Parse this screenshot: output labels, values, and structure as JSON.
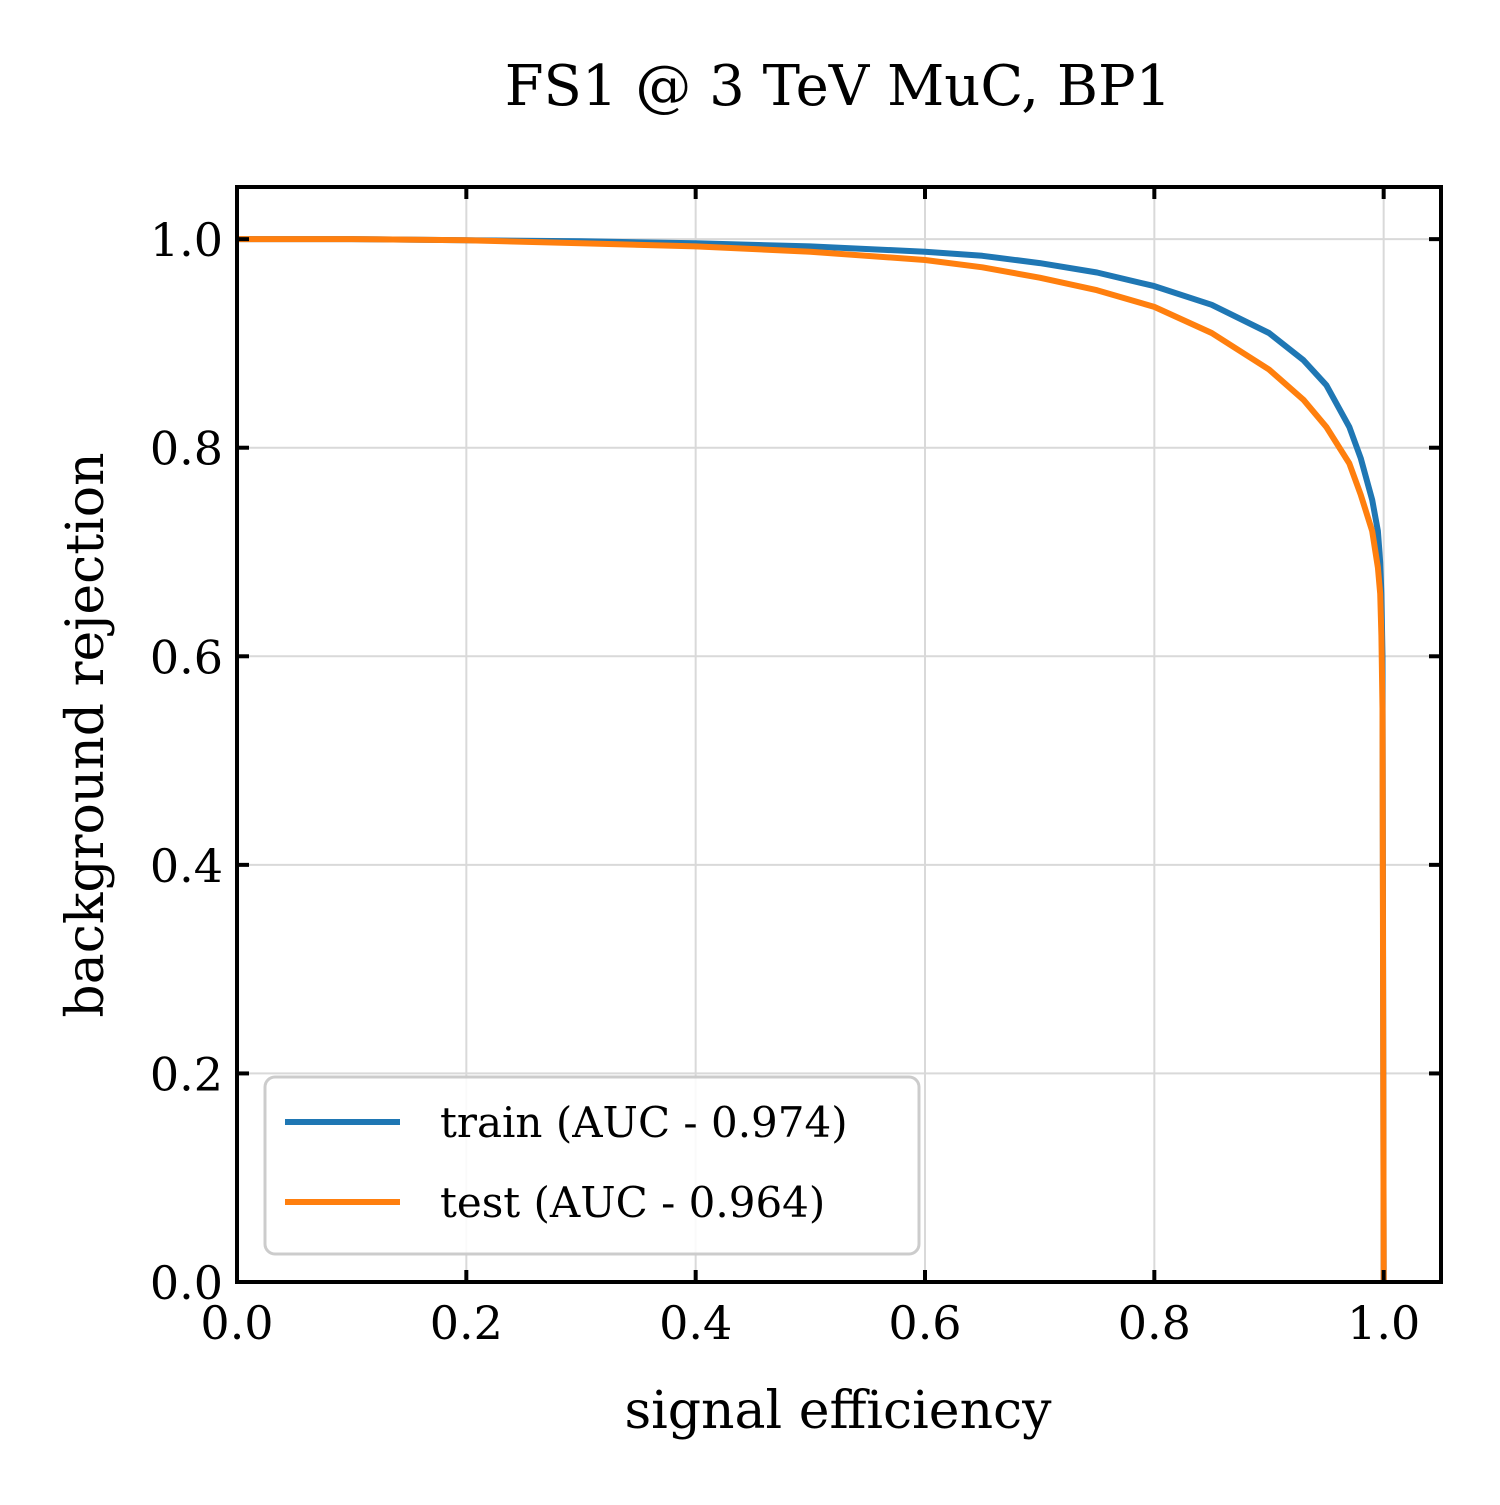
{
  "chart_data": {
    "type": "line",
    "title": "FS1 @ 3 TeV MuC, BP1",
    "xlabel": "signal efficiency",
    "ylabel": "background rejection",
    "xlim": [
      0.0,
      1.05
    ],
    "ylim": [
      0.0,
      1.05
    ],
    "xticks": [
      0.0,
      0.2,
      0.4,
      0.6,
      0.8,
      1.0
    ],
    "xtick_labels": [
      "0.0",
      "0.2",
      "0.4",
      "0.6",
      "0.8",
      "1.0"
    ],
    "yticks": [
      0.0,
      0.2,
      0.4,
      0.6,
      0.8,
      1.0
    ],
    "ytick_labels": [
      "0.0",
      "0.2",
      "0.4",
      "0.6",
      "0.8",
      "1.0"
    ],
    "grid": true,
    "legend_position": "lower-left",
    "series": [
      {
        "name": "train (AUC - 0.974)",
        "color": "#1f77b4",
        "x": [
          0.0,
          0.1,
          0.2,
          0.3,
          0.4,
          0.5,
          0.6,
          0.65,
          0.7,
          0.75,
          0.8,
          0.85,
          0.9,
          0.93,
          0.95,
          0.97,
          0.98,
          0.99,
          0.995,
          0.997,
          0.998,
          0.999,
          1.0
        ],
        "y": [
          1.0,
          1.0,
          0.999,
          0.998,
          0.996,
          0.993,
          0.988,
          0.984,
          0.977,
          0.968,
          0.955,
          0.937,
          0.91,
          0.884,
          0.86,
          0.82,
          0.79,
          0.75,
          0.72,
          0.69,
          0.66,
          0.6,
          0.0
        ]
      },
      {
        "name": "test (AUC - 0.964)",
        "color": "#ff7f0e",
        "x": [
          0.0,
          0.1,
          0.2,
          0.3,
          0.4,
          0.5,
          0.6,
          0.65,
          0.7,
          0.75,
          0.8,
          0.85,
          0.9,
          0.93,
          0.95,
          0.97,
          0.98,
          0.99,
          0.995,
          0.997,
          0.998,
          0.999,
          1.0
        ],
        "y": [
          1.0,
          1.0,
          0.999,
          0.996,
          0.993,
          0.988,
          0.98,
          0.973,
          0.963,
          0.951,
          0.935,
          0.91,
          0.875,
          0.846,
          0.82,
          0.785,
          0.755,
          0.72,
          0.685,
          0.66,
          0.62,
          0.55,
          0.0
        ]
      }
    ]
  }
}
